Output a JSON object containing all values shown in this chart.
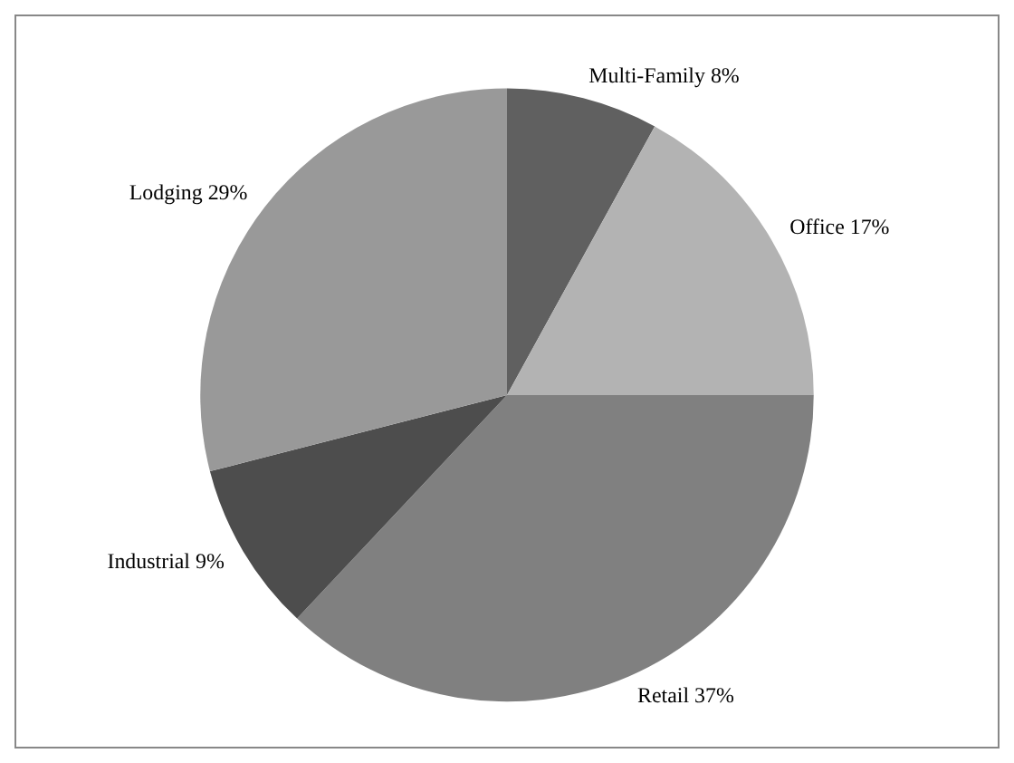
{
  "chart_data": {
    "type": "pie",
    "categories": [
      "Multi-Family",
      "Office",
      "Retail",
      "Industrial",
      "Lodging"
    ],
    "values": [
      8,
      17,
      37,
      9,
      29
    ],
    "value_labels": [
      "8%",
      "17%",
      "37%",
      "9%",
      "29%"
    ],
    "colors": [
      "#606060",
      "#b3b3b3",
      "#808080",
      "#4d4d4d",
      "#999999"
    ],
    "legend": false
  }
}
